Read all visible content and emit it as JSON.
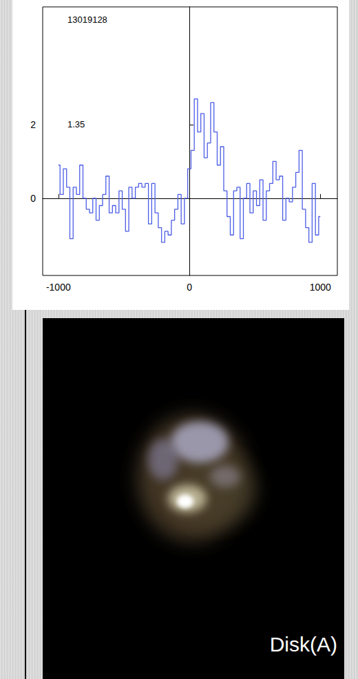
{
  "chart_data": {
    "type": "line",
    "annotations": [
      "13019128",
      "1.35"
    ],
    "x": [
      -1000,
      -975,
      -950,
      -925,
      -900,
      -875,
      -850,
      -825,
      -800,
      -775,
      -750,
      -725,
      -700,
      -675,
      -650,
      -625,
      -600,
      -575,
      -550,
      -525,
      -500,
      -475,
      -450,
      -425,
      -400,
      -375,
      -350,
      -325,
      -300,
      -275,
      -250,
      -225,
      -200,
      -175,
      -150,
      -125,
      -100,
      -75,
      -50,
      -25,
      0,
      25,
      50,
      75,
      100,
      125,
      150,
      175,
      200,
      225,
      250,
      275,
      300,
      325,
      350,
      375,
      400,
      425,
      450,
      475,
      500,
      525,
      550,
      575,
      600,
      625,
      650,
      675,
      700,
      725,
      750,
      775,
      800,
      825,
      850,
      875,
      900,
      925,
      950,
      975,
      1000
    ],
    "values": [
      0.9,
      0.1,
      0.8,
      0.3,
      -1.1,
      0.3,
      0.1,
      0.9,
      0.0,
      -0.3,
      -0.4,
      0.0,
      -0.6,
      -0.2,
      0.1,
      0.6,
      -0.4,
      -0.2,
      -0.4,
      0.2,
      -0.3,
      -0.9,
      0.3,
      0.0,
      0.3,
      0.4,
      0.3,
      0.4,
      -0.7,
      0.4,
      -0.4,
      -0.8,
      -1.2,
      -0.9,
      -1.0,
      -0.6,
      -0.3,
      0.1,
      -0.7,
      0.0,
      0.8,
      1.3,
      2.7,
      1.8,
      2.3,
      1.1,
      1.5,
      2.6,
      1.8,
      0.9,
      1.4,
      0.2,
      -0.5,
      -1.0,
      0.2,
      0.3,
      -1.1,
      0.0,
      0.4,
      -0.4,
      0.2,
      -0.2,
      0.5,
      -0.6,
      0.2,
      0.4,
      1.0,
      0.5,
      0.6,
      -0.6,
      0.0,
      -0.1,
      0.3,
      0.7,
      1.3,
      -0.3,
      -0.8,
      -1.2,
      0.4,
      -1.0,
      -0.5
    ],
    "color": "#4a5ce6",
    "line_style": "step",
    "xlim": [
      -1120,
      1130
    ],
    "xticks": [
      -1000,
      0,
      1000
    ],
    "ylim": [
      -2.1,
      5.2
    ],
    "yticks": [
      0,
      2
    ],
    "grid": false
  },
  "image": {
    "label": "Disk(A)"
  }
}
